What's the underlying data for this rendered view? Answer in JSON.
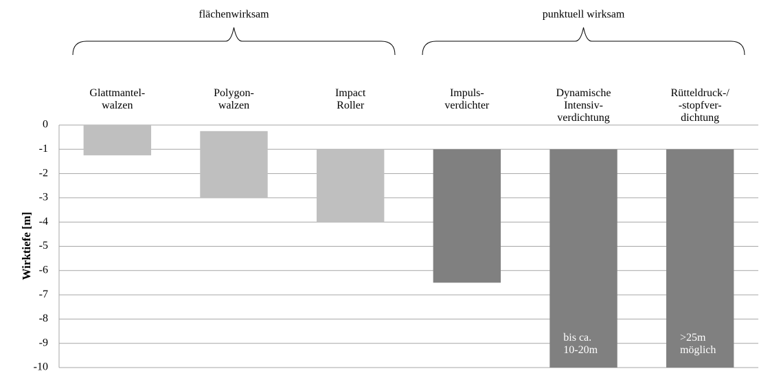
{
  "chart_data": {
    "type": "floating_bar",
    "y_label": "Wirktiefe [m]",
    "categories": [
      "Glattmantel-\nwalzen",
      "Polygon-\nwalzen",
      "Impact\nRoller",
      "Impuls-\nverdichter",
      "Dynamische\nIntensiv-\nverdichtung",
      "Rütteldruck-/\n-stopfver-\ndichtung"
    ],
    "tops": [
      0,
      -0.25,
      -1,
      -1,
      -1,
      -1
    ],
    "bottoms": [
      -1.25,
      -3,
      -4,
      -6.5,
      -10,
      -10
    ],
    "colors": [
      "#bfbfbf",
      "#bfbfbf",
      "#bfbfbf",
      "#808080",
      "#808080",
      "#808080"
    ],
    "bar_notes": [
      null,
      null,
      null,
      null,
      "bis ca.\n10-20m",
      ">25m\nmöglich"
    ],
    "groups": [
      {
        "label": "flächenwirksam",
        "span": [
          0,
          2
        ]
      },
      {
        "label": "punktuell wirksam",
        "span": [
          3,
          5
        ]
      }
    ],
    "ylim": [
      -10,
      0
    ],
    "yticks": [
      0,
      -1,
      -2,
      -3,
      -4,
      -5,
      -6,
      -7,
      -8,
      -9,
      -10
    ],
    "grid": true
  }
}
